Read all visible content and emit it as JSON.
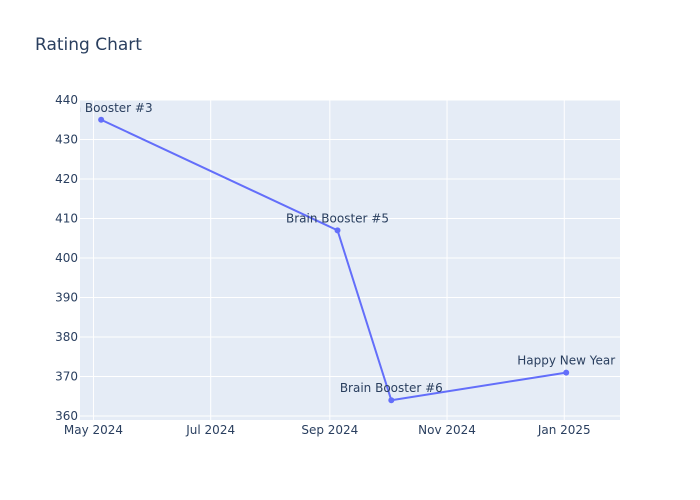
{
  "chart_data": {
    "type": "line",
    "title": "Rating Chart",
    "xlabel": "",
    "ylabel": "",
    "x_axis_type": "date",
    "xlim": [
      "2024-04-24",
      "2025-01-30"
    ],
    "ylim": [
      359,
      440
    ],
    "x_ticks": [
      {
        "date": "2024-05-01",
        "label": "May 2024"
      },
      {
        "date": "2024-07-01",
        "label": "Jul 2024"
      },
      {
        "date": "2024-09-01",
        "label": "Sep 2024"
      },
      {
        "date": "2024-11-01",
        "label": "Nov 2024"
      },
      {
        "date": "2025-01-01",
        "label": "Jan 2025"
      }
    ],
    "y_ticks": [
      360,
      370,
      380,
      390,
      400,
      410,
      420,
      430,
      440
    ],
    "grid": true,
    "series": [
      {
        "color": "#636efa",
        "points": [
          {
            "x": "2024-05-05",
            "y": 435,
            "label": "Brain Booster #3"
          },
          {
            "x": "2024-09-05",
            "y": 407,
            "label": "Brain Booster #5"
          },
          {
            "x": "2024-10-03",
            "y": 364,
            "label": "Brain Booster #6"
          },
          {
            "x": "2025-01-02",
            "y": 371,
            "label": "Happy New Year"
          }
        ]
      }
    ],
    "colors": {
      "plot_background": "#e5ecf6",
      "grid": "#ffffff",
      "text": "#2a3f5f",
      "line": "#636efa"
    }
  }
}
